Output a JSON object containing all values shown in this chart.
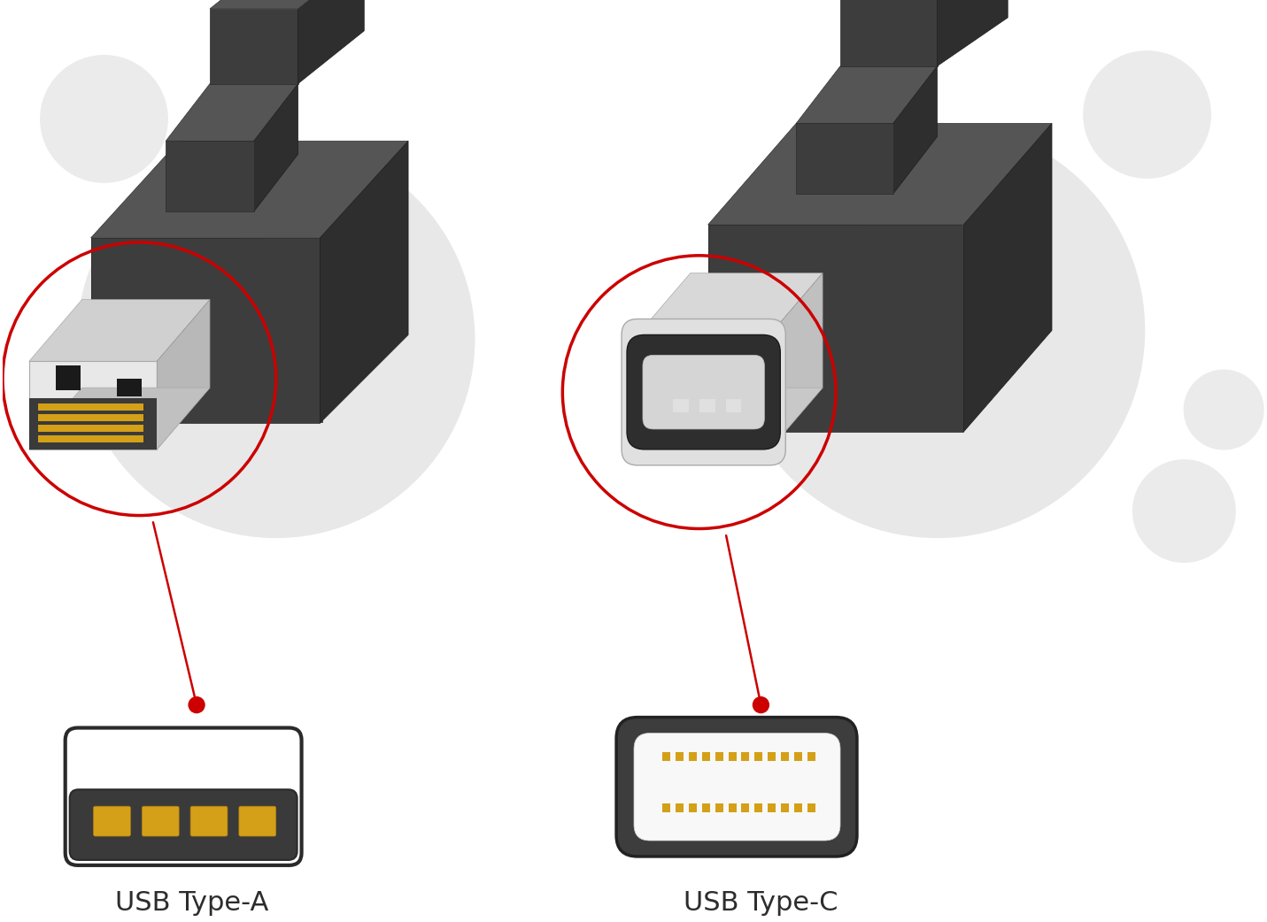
{
  "background_color": "#ffffff",
  "label_a": "USB Type-A",
  "label_c": "USB Type-C",
  "label_fontsize": 22,
  "label_color": "#2d2d2d"
}
